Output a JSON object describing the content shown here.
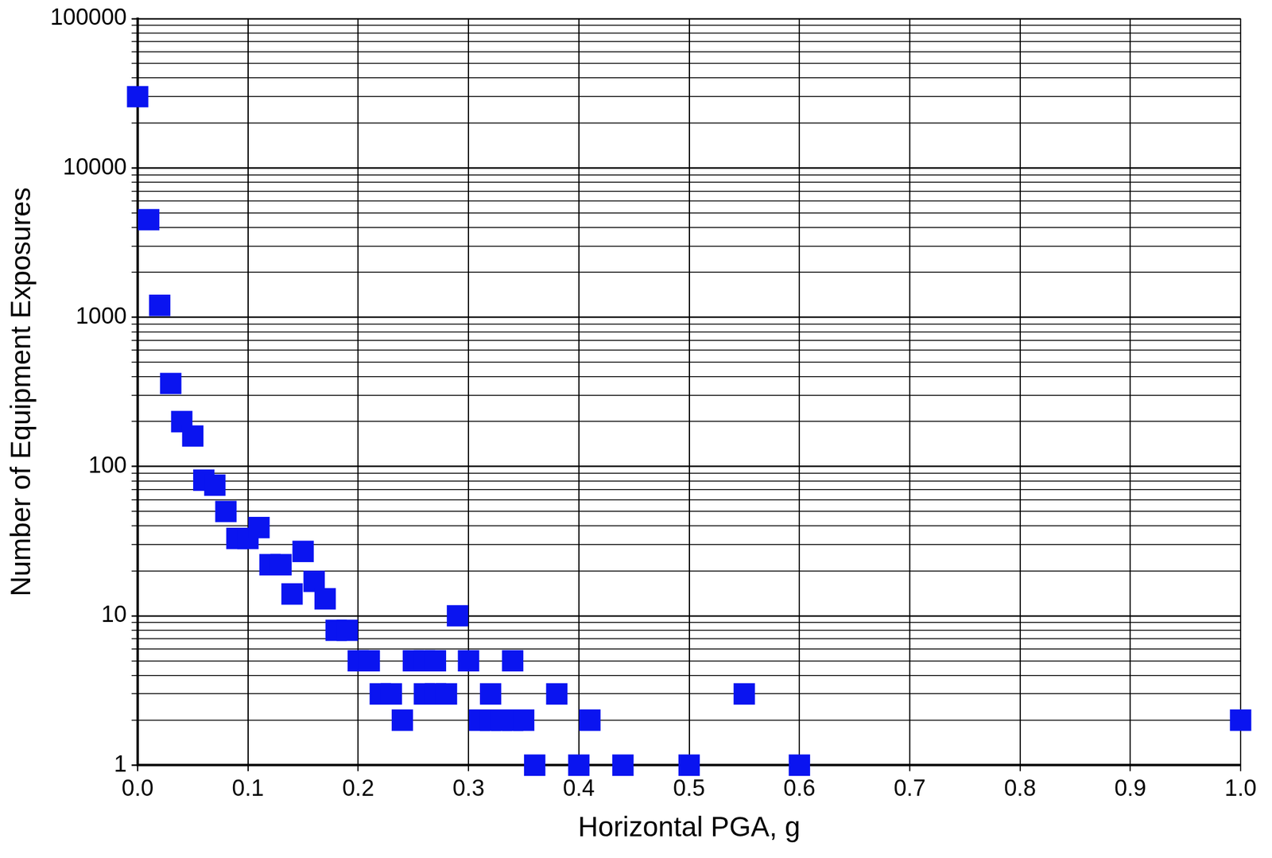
{
  "chart_data": {
    "type": "scatter",
    "x_label": "Horizontal PGA, g",
    "y_label": "Number of Equipment Exposures",
    "x": [
      0.0,
      0.01,
      0.02,
      0.03,
      0.04,
      0.05,
      0.06,
      0.07,
      0.08,
      0.09,
      0.1,
      0.11,
      0.12,
      0.13,
      0.14,
      0.15,
      0.16,
      0.17,
      0.18,
      0.19,
      0.2,
      0.21,
      0.22,
      0.23,
      0.24,
      0.25,
      0.26,
      0.27,
      0.26,
      0.27,
      0.28,
      0.29,
      0.3,
      0.31,
      0.32,
      0.32,
      0.33,
      0.34,
      0.34,
      0.35,
      0.36,
      0.38,
      0.4,
      0.41,
      0.44,
      0.5,
      0.55,
      0.6,
      1.0
    ],
    "values": [
      30000,
      4500,
      1200,
      360,
      200,
      160,
      81,
      75,
      50,
      33,
      33,
      39,
      22,
      22,
      14,
      27,
      17,
      13,
      8,
      8,
      5,
      5,
      3,
      3,
      2,
      5,
      5,
      5,
      3,
      3,
      3,
      10,
      5,
      2,
      3,
      2,
      2,
      5,
      2,
      2,
      1,
      3,
      1,
      2,
      1,
      1,
      3,
      1,
      2
    ],
    "color": "#0a14f0",
    "marker": "square",
    "log": "y",
    "grid": true,
    "xlim": [
      0,
      1
    ],
    "xticks": [
      {
        "value": 0,
        "label": "0.0"
      },
      0.1,
      0.2,
      0.3,
      0.4,
      0.5,
      0.6,
      0.7,
      0.8,
      0.9,
      {
        "value": 1,
        "label": "1.0"
      }
    ],
    "ylim": [
      1,
      100000
    ],
    "yticks": [
      1,
      10,
      100,
      1000,
      10000,
      100000
    ]
  }
}
